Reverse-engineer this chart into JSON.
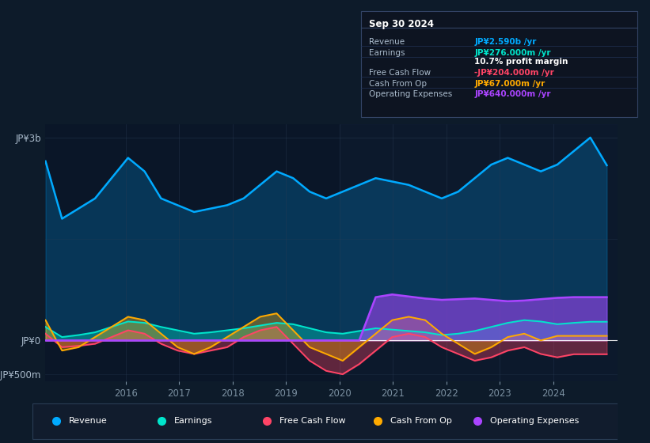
{
  "bg_color": "#0d1b2a",
  "plot_bg_color": "#0a1628",
  "colors": {
    "revenue": "#00aaff",
    "earnings": "#00e5cc",
    "free_cash_flow": "#ff4466",
    "cash_from_op": "#ffaa00",
    "operating_expenses": "#aa44ff"
  },
  "legend_entries": [
    "Revenue",
    "Earnings",
    "Free Cash Flow",
    "Cash From Op",
    "Operating Expenses"
  ],
  "revenue": [
    2650,
    1800,
    1950,
    2100,
    2400,
    2700,
    2500,
    2100,
    2000,
    1900,
    1950,
    2000,
    2100,
    2300,
    2500,
    2400,
    2200,
    2100,
    2200,
    2300,
    2400,
    2350,
    2300,
    2200,
    2100,
    2200,
    2400,
    2600,
    2700,
    2600,
    2500,
    2600,
    2800,
    3000,
    2590
  ],
  "earnings": [
    200,
    50,
    80,
    120,
    200,
    280,
    260,
    200,
    150,
    100,
    120,
    150,
    180,
    220,
    260,
    240,
    180,
    120,
    100,
    140,
    180,
    160,
    140,
    120,
    80,
    100,
    140,
    200,
    260,
    300,
    280,
    240,
    260,
    276,
    276
  ],
  "free_cash_flow": [
    100,
    -100,
    -80,
    -50,
    50,
    150,
    100,
    -50,
    -150,
    -200,
    -150,
    -100,
    50,
    150,
    200,
    -50,
    -300,
    -450,
    -500,
    -350,
    -150,
    50,
    100,
    50,
    -100,
    -200,
    -300,
    -250,
    -150,
    -100,
    -200,
    -250,
    -204,
    -204,
    -204
  ],
  "cash_from_op": [
    300,
    -150,
    -100,
    50,
    200,
    350,
    300,
    100,
    -100,
    -200,
    -100,
    50,
    200,
    350,
    400,
    150,
    -100,
    -200,
    -300,
    -100,
    100,
    300,
    350,
    300,
    100,
    -50,
    -200,
    -100,
    50,
    100,
    0,
    67,
    67,
    67,
    67
  ],
  "operating_expenses": [
    0,
    0,
    0,
    0,
    0,
    0,
    0,
    0,
    0,
    0,
    0,
    0,
    0,
    0,
    0,
    0,
    0,
    0,
    0,
    0,
    640,
    680,
    650,
    620,
    600,
    610,
    620,
    600,
    580,
    590,
    610,
    630,
    640,
    640,
    640
  ],
  "info_title": "Sep 30 2024",
  "info_rows": [
    {
      "label": "Revenue",
      "value": "JP¥2.590b /yr",
      "value_color": "#00aaff"
    },
    {
      "label": "Earnings",
      "value": "JP¥276.000m /yr",
      "value_color": "#00e5cc"
    },
    {
      "label": "",
      "value": "10.7% profit margin",
      "value_color": "#ffffff"
    },
    {
      "label": "Free Cash Flow",
      "value": "-JP¥204.000m /yr",
      "value_color": "#ff4466"
    },
    {
      "label": "Cash From Op",
      "value": "JP¥67.000m /yr",
      "value_color": "#ffaa00"
    },
    {
      "label": "Operating Expenses",
      "value": "JP¥640.000m /yr",
      "value_color": "#aa44ff"
    }
  ]
}
